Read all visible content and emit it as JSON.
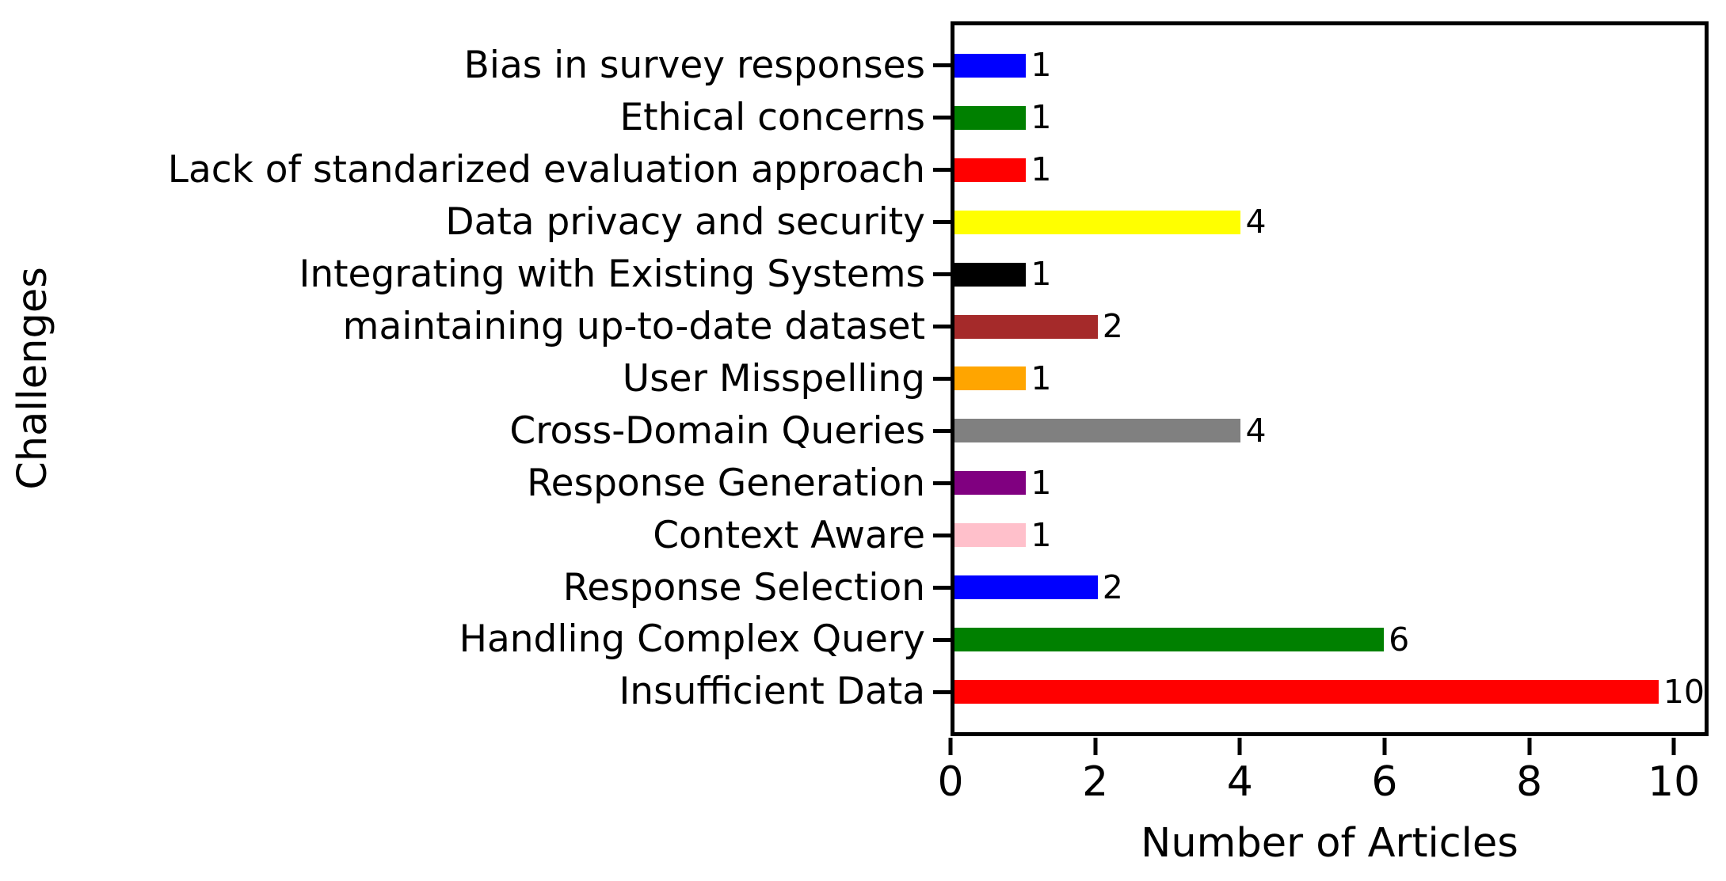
{
  "figure": {
    "xlabel": "Number of Articles",
    "ylabel": "Challenges"
  },
  "chart_data": {
    "type": "bar",
    "orientation": "horizontal",
    "title": "",
    "xlabel": "Number of Articles",
    "ylabel": "Challenges",
    "categories": [
      "Bias in survey responses",
      "Ethical concerns",
      "Lack of standarized evaluation approach",
      "Data privacy and security",
      "Integrating with Existing Systems",
      "maintaining up-to-date dataset",
      "User Misspelling",
      "Cross-Domain Queries",
      "Response Generation",
      "Context Aware",
      "Response Selection",
      "Handling Complex Query",
      "Insufficient Data"
    ],
    "values": [
      1,
      1,
      1,
      4,
      1,
      2,
      1,
      4,
      1,
      1,
      2,
      6,
      10
    ],
    "bar_colors": [
      "#0000FF",
      "#008000",
      "#FF0000",
      "#FFFF00",
      "#000000",
      "#A52A2A",
      "#FFA500",
      "#808080",
      "#800080",
      "#FFC0CB",
      "#0000FF",
      "#008000",
      "#FF0000"
    ],
    "x_ticks": [
      0,
      2,
      4,
      6,
      8,
      10
    ],
    "xlim": [
      0,
      10.48
    ],
    "grid": false,
    "legend": false,
    "category_order": "top-to-bottom",
    "value_labels_shown": true,
    "spine_color": "#000000",
    "background_color": "#FFFFFF"
  }
}
